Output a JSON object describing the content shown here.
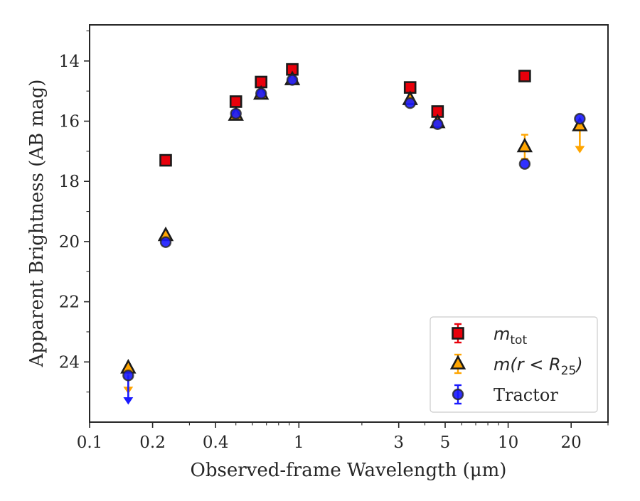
{
  "chart_data": {
    "type": "scatter",
    "xlabel": "Observed-frame Wavelength (μm)",
    "ylabel": "Apparent Brightness (AB mag)",
    "x_scale": "log",
    "xlim": [
      0.1,
      30
    ],
    "ylim": [
      26.0,
      12.8
    ],
    "y_inverted": true,
    "grid": false,
    "legend_position": "bottom-right",
    "x_ticks": [
      {
        "value": 0.1,
        "label": "0.1"
      },
      {
        "value": 0.2,
        "label": "0.2"
      },
      {
        "value": 0.4,
        "label": "0.4"
      },
      {
        "value": 1,
        "label": "1"
      },
      {
        "value": 3,
        "label": "3"
      },
      {
        "value": 5,
        "label": "5"
      },
      {
        "value": 10,
        "label": "10"
      },
      {
        "value": 20,
        "label": "20"
      }
    ],
    "y_ticks": [
      {
        "value": 14,
        "label": "14"
      },
      {
        "value": 16,
        "label": "16"
      },
      {
        "value": 18,
        "label": "18"
      },
      {
        "value": 20,
        "label": "20"
      },
      {
        "value": 22,
        "label": "22"
      },
      {
        "value": 24,
        "label": "24"
      }
    ],
    "series": [
      {
        "name": "m_tot",
        "legend_main": "m",
        "legend_sub": "tot",
        "marker": "square",
        "color": "#e8000b",
        "edge_color": "#1a1a1a",
        "points": [
          {
            "x": 0.231,
            "y": 17.3
          },
          {
            "x": 0.5,
            "y": 15.35
          },
          {
            "x": 0.66,
            "y": 14.7
          },
          {
            "x": 0.93,
            "y": 14.28
          },
          {
            "x": 3.4,
            "y": 14.88
          },
          {
            "x": 4.6,
            "y": 15.68
          },
          {
            "x": 12.0,
            "y": 14.5
          }
        ]
      },
      {
        "name": "m(r < R_25)",
        "legend_main": "m(r < R",
        "legend_sub": "25",
        "legend_tail": ")",
        "marker": "triangle",
        "color": "#ffa500",
        "edge_color": "#1a1a1a",
        "points": [
          {
            "x": 0.153,
            "y": 24.2,
            "upper_limit": true,
            "arrow_to": 25.0
          },
          {
            "x": 0.231,
            "y": 19.8
          },
          {
            "x": 0.5,
            "y": 15.8
          },
          {
            "x": 0.66,
            "y": 15.1
          },
          {
            "x": 0.93,
            "y": 14.62
          },
          {
            "x": 3.4,
            "y": 15.28
          },
          {
            "x": 4.6,
            "y": 16.05
          },
          {
            "x": 12.0,
            "y": 16.85,
            "err": 0.4
          },
          {
            "x": 22.0,
            "y": 16.15,
            "upper_limit": true,
            "arrow_to": 17.0
          }
        ]
      },
      {
        "name": "Tractor",
        "legend_main": "Tractor",
        "marker": "circle",
        "color": "#1a1aff",
        "edge_color": "#262626",
        "points": [
          {
            "x": 0.153,
            "y": 24.45,
            "upper_limit": true,
            "arrow_to": 25.35
          },
          {
            "x": 0.231,
            "y": 20.02
          },
          {
            "x": 0.5,
            "y": 15.75
          },
          {
            "x": 0.66,
            "y": 15.08
          },
          {
            "x": 0.93,
            "y": 14.63
          },
          {
            "x": 3.4,
            "y": 15.4
          },
          {
            "x": 4.6,
            "y": 16.1
          },
          {
            "x": 12.0,
            "y": 17.42
          },
          {
            "x": 22.0,
            "y": 15.92
          }
        ]
      }
    ]
  }
}
